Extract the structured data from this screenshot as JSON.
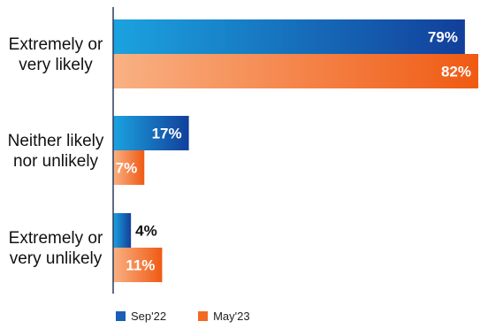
{
  "chart_data": {
    "type": "bar",
    "orientation": "horizontal",
    "categories": [
      "Extremely or very likely",
      "Neither likely nor unlikely",
      "Extremely or very unlikely"
    ],
    "category_lines": [
      [
        "Extremely or",
        "very likely"
      ],
      [
        "Neither likely",
        "nor unlikely"
      ],
      [
        "Extremely or",
        "very unlikely"
      ]
    ],
    "series": [
      {
        "name": "Sep'22",
        "values": [
          79,
          17,
          4
        ],
        "labels": [
          "79%",
          "17%",
          "4%"
        ],
        "color": "#1a5fb4",
        "color_light": "#1ba3df",
        "color_dark": "#123f9b"
      },
      {
        "name": "May'23",
        "values": [
          82,
          7,
          11
        ],
        "labels": [
          "82%",
          "7%",
          "11%"
        ],
        "color": "#f26a22",
        "color_light": "#f9b184",
        "color_dark": "#f05a13"
      }
    ],
    "xlim": [
      0,
      82
    ],
    "legend_position": "bottom",
    "grid": false
  }
}
